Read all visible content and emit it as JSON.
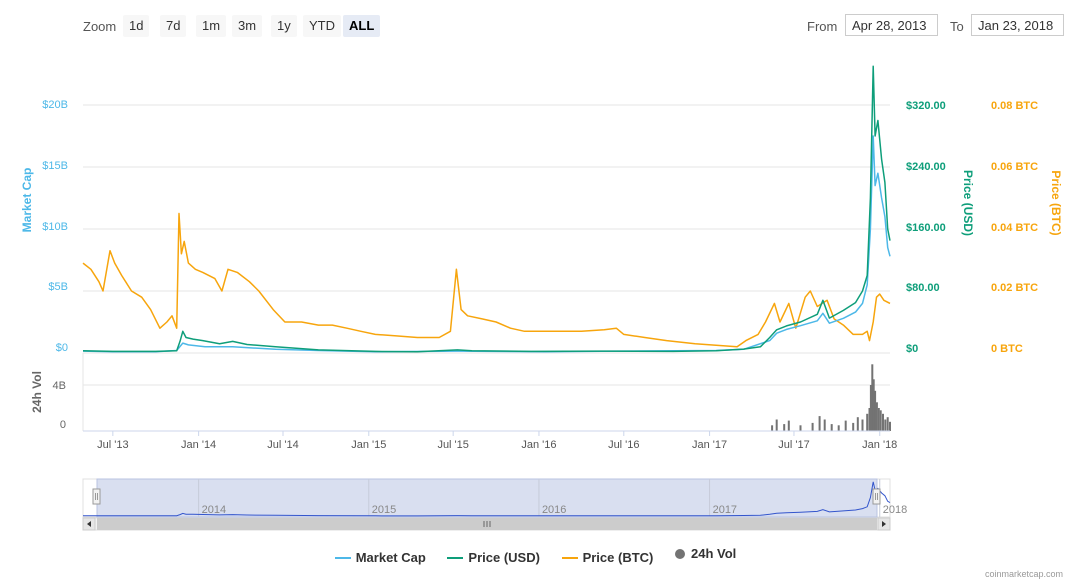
{
  "toolbar": {
    "zoom_label": "Zoom",
    "zoom_buttons": [
      "1d",
      "7d",
      "1m",
      "3m",
      "1y",
      "YTD",
      "ALL"
    ],
    "active_zoom": "ALL",
    "from_label": "From",
    "from_value": "Apr 28, 2013",
    "to_label": "To",
    "to_value": "Jan 23, 2018"
  },
  "legend": [
    {
      "name": "Market Cap",
      "color": "#4db8e8",
      "shape": "line"
    },
    {
      "name": "Price (USD)",
      "color": "#0e9e7a",
      "shape": "line"
    },
    {
      "name": "Price (BTC)",
      "color": "#f7a50d",
      "shape": "line"
    },
    {
      "name": "24h Vol",
      "color": "#737373",
      "shape": "dot"
    }
  ],
  "credit": "coinmarketcap.com",
  "chart_data": {
    "type": "line",
    "x_range": [
      "2013-04-28",
      "2018-01-23"
    ],
    "x_ticks": [
      "Jul '13",
      "Jan '14",
      "Jul '14",
      "Jan '15",
      "Jul '15",
      "Jan '16",
      "Jul '16",
      "Jan '17",
      "Jul '17",
      "Jan '18"
    ],
    "navigator_ticks": [
      "2014",
      "2015",
      "2016",
      "2017",
      "2018"
    ],
    "axes": {
      "market_cap": {
        "label": "Market Cap",
        "ticks": [
          "$0",
          "$5B",
          "$10B",
          "$15B",
          "$20B"
        ],
        "color": "#4db8e8",
        "range": [
          0,
          20000000000
        ]
      },
      "price_usd": {
        "label": "Price (USD)",
        "ticks": [
          "$0",
          "$80.00",
          "$160.00",
          "$240.00",
          "$320.00"
        ],
        "color": "#0e9e7a",
        "range": [
          0,
          320
        ]
      },
      "price_btc": {
        "label": "Price (BTC)",
        "ticks": [
          "0 BTC",
          "0.02 BTC",
          "0.04 BTC",
          "0.06 BTC",
          "0.08 BTC"
        ],
        "color": "#f7a50d",
        "range": [
          0,
          0.08
        ]
      },
      "volume": {
        "label": "24h Vol",
        "ticks": [
          "0",
          "4B"
        ],
        "color": "#737373",
        "range": [
          0,
          4000000000
        ]
      }
    },
    "series": [
      {
        "name": "Price (BTC)",
        "axis": "price_btc",
        "points": [
          [
            "2013-04-28",
            0.029
          ],
          [
            "2013-05-15",
            0.027
          ],
          [
            "2013-06-01",
            0.023
          ],
          [
            "2013-06-10",
            0.02
          ],
          [
            "2013-06-25",
            0.033
          ],
          [
            "2013-07-05",
            0.029
          ],
          [
            "2013-07-20",
            0.025
          ],
          [
            "2013-08-10",
            0.02
          ],
          [
            "2013-09-01",
            0.018
          ],
          [
            "2013-09-20",
            0.014
          ],
          [
            "2013-10-10",
            0.008
          ],
          [
            "2013-10-25",
            0.01
          ],
          [
            "2013-11-05",
            0.012
          ],
          [
            "2013-11-15",
            0.008
          ],
          [
            "2013-11-20",
            0.045
          ],
          [
            "2013-11-25",
            0.032
          ],
          [
            "2013-12-01",
            0.036
          ],
          [
            "2013-12-10",
            0.029
          ],
          [
            "2013-12-25",
            0.027
          ],
          [
            "2014-01-10",
            0.026
          ],
          [
            "2014-02-05",
            0.024
          ],
          [
            "2014-02-20",
            0.02
          ],
          [
            "2014-03-05",
            0.027
          ],
          [
            "2014-03-25",
            0.026
          ],
          [
            "2014-04-20",
            0.023
          ],
          [
            "2014-05-10",
            0.02
          ],
          [
            "2014-06-10",
            0.014
          ],
          [
            "2014-07-05",
            0.01
          ],
          [
            "2014-08-10",
            0.01
          ],
          [
            "2014-09-15",
            0.009
          ],
          [
            "2014-10-15",
            0.009
          ],
          [
            "2014-11-15",
            0.008
          ],
          [
            "2014-12-15",
            0.007
          ],
          [
            "2015-01-15",
            0.006
          ],
          [
            "2015-03-01",
            0.0055
          ],
          [
            "2015-04-15",
            0.005
          ],
          [
            "2015-06-01",
            0.005
          ],
          [
            "2015-06-25",
            0.007
          ],
          [
            "2015-07-08",
            0.027
          ],
          [
            "2015-07-18",
            0.014
          ],
          [
            "2015-08-01",
            0.012
          ],
          [
            "2015-09-01",
            0.011
          ],
          [
            "2015-10-01",
            0.01
          ],
          [
            "2015-11-01",
            0.008
          ],
          [
            "2015-12-01",
            0.007
          ],
          [
            "2016-02-01",
            0.007
          ],
          [
            "2016-04-01",
            0.007
          ],
          [
            "2016-05-20",
            0.0075
          ],
          [
            "2016-06-15",
            0.008
          ],
          [
            "2016-07-01",
            0.006
          ],
          [
            "2016-08-15",
            0.005
          ],
          [
            "2016-10-01",
            0.004
          ],
          [
            "2016-12-01",
            0.003
          ],
          [
            "2017-01-15",
            0.0025
          ],
          [
            "2017-03-01",
            0.002
          ],
          [
            "2017-03-20",
            0.004
          ],
          [
            "2017-04-15",
            0.006
          ],
          [
            "2017-05-01",
            0.01
          ],
          [
            "2017-05-20",
            0.016
          ],
          [
            "2017-06-01",
            0.01
          ],
          [
            "2017-06-20",
            0.016
          ],
          [
            "2017-07-05",
            0.008
          ],
          [
            "2017-07-25",
            0.018
          ],
          [
            "2017-08-05",
            0.02
          ],
          [
            "2017-08-20",
            0.015
          ],
          [
            "2017-09-10",
            0.017
          ],
          [
            "2017-09-25",
            0.011
          ],
          [
            "2017-10-15",
            0.009
          ],
          [
            "2017-11-05",
            0.006
          ],
          [
            "2017-11-25",
            0.006
          ],
          [
            "2017-12-05",
            0.007
          ],
          [
            "2017-12-10",
            0.004
          ],
          [
            "2017-12-18",
            0.01
          ],
          [
            "2017-12-25",
            0.018
          ],
          [
            "2018-01-01",
            0.019
          ],
          [
            "2018-01-10",
            0.017
          ],
          [
            "2018-01-23",
            0.016
          ]
        ]
      },
      {
        "name": "Price (USD)",
        "axis": "price_usd",
        "points": [
          [
            "2013-04-28",
            3
          ],
          [
            "2013-07-01",
            2
          ],
          [
            "2013-10-01",
            2
          ],
          [
            "2013-11-15",
            3
          ],
          [
            "2013-11-22",
            15
          ],
          [
            "2013-11-28",
            28
          ],
          [
            "2013-12-05",
            20
          ],
          [
            "2013-12-20",
            18
          ],
          [
            "2014-01-10",
            16
          ],
          [
            "2014-02-15",
            12
          ],
          [
            "2014-03-15",
            15
          ],
          [
            "2014-04-15",
            11
          ],
          [
            "2014-06-15",
            8
          ],
          [
            "2014-09-15",
            4
          ],
          [
            "2015-01-15",
            2
          ],
          [
            "2015-04-15",
            1.5
          ],
          [
            "2015-07-10",
            4
          ],
          [
            "2015-08-10",
            3
          ],
          [
            "2015-12-15",
            2
          ],
          [
            "2016-05-15",
            2.5
          ],
          [
            "2016-10-15",
            2
          ],
          [
            "2017-01-15",
            3
          ],
          [
            "2017-03-15",
            5
          ],
          [
            "2017-04-20",
            8
          ],
          [
            "2017-05-10",
            20
          ],
          [
            "2017-05-25",
            30
          ],
          [
            "2017-06-15",
            35
          ],
          [
            "2017-07-15",
            40
          ],
          [
            "2017-08-20",
            50
          ],
          [
            "2017-09-01",
            68
          ],
          [
            "2017-09-15",
            45
          ],
          [
            "2017-10-15",
            55
          ],
          [
            "2017-11-10",
            65
          ],
          [
            "2017-11-25",
            80
          ],
          [
            "2017-12-05",
            100
          ],
          [
            "2017-12-12",
            200
          ],
          [
            "2017-12-18",
            370
          ],
          [
            "2017-12-22",
            280
          ],
          [
            "2017-12-28",
            300
          ],
          [
            "2018-01-05",
            250
          ],
          [
            "2018-01-12",
            220
          ],
          [
            "2018-01-18",
            160
          ],
          [
            "2018-01-23",
            145
          ]
        ]
      },
      {
        "name": "Market Cap",
        "axis": "market_cap",
        "points": [
          [
            "2013-04-28",
            150000000
          ],
          [
            "2013-07-01",
            100000000
          ],
          [
            "2013-10-01",
            100000000
          ],
          [
            "2013-11-15",
            200000000
          ],
          [
            "2013-11-28",
            800000000
          ],
          [
            "2013-12-10",
            650000000
          ],
          [
            "2014-01-15",
            500000000
          ],
          [
            "2014-03-15",
            500000000
          ],
          [
            "2014-06-15",
            300000000
          ],
          [
            "2014-09-15",
            200000000
          ],
          [
            "2015-01-15",
            100000000
          ],
          [
            "2015-07-10",
            150000000
          ],
          [
            "2016-01-15",
            100000000
          ],
          [
            "2016-06-15",
            150000000
          ],
          [
            "2017-01-15",
            200000000
          ],
          [
            "2017-03-15",
            300000000
          ],
          [
            "2017-05-10",
            1000000000
          ],
          [
            "2017-05-25",
            1600000000
          ],
          [
            "2017-06-15",
            1900000000
          ],
          [
            "2017-07-15",
            2200000000
          ],
          [
            "2017-08-20",
            2600000000
          ],
          [
            "2017-09-01",
            3200000000
          ],
          [
            "2017-09-15",
            2400000000
          ],
          [
            "2017-10-15",
            2800000000
          ],
          [
            "2017-11-10",
            3300000000
          ],
          [
            "2017-11-25",
            4000000000
          ],
          [
            "2017-12-05",
            5500000000
          ],
          [
            "2017-12-12",
            10000000000
          ],
          [
            "2017-12-18",
            17500000000
          ],
          [
            "2017-12-22",
            13500000000
          ],
          [
            "2017-12-28",
            14500000000
          ],
          [
            "2018-01-05",
            12500000000
          ],
          [
            "2018-01-12",
            11000000000
          ],
          [
            "2018-01-18",
            8500000000
          ],
          [
            "2018-01-23",
            7800000000
          ]
        ]
      },
      {
        "name": "24h Vol",
        "axis": "volume",
        "points": [
          [
            "2017-05-15",
            500000000
          ],
          [
            "2017-05-25",
            1000000000
          ],
          [
            "2017-06-10",
            600000000
          ],
          [
            "2017-06-20",
            900000000
          ],
          [
            "2017-07-15",
            500000000
          ],
          [
            "2017-08-10",
            700000000
          ],
          [
            "2017-08-25",
            1300000000
          ],
          [
            "2017-09-05",
            1000000000
          ],
          [
            "2017-09-20",
            600000000
          ],
          [
            "2017-10-05",
            500000000
          ],
          [
            "2017-10-20",
            900000000
          ],
          [
            "2017-11-05",
            700000000
          ],
          [
            "2017-11-15",
            1200000000
          ],
          [
            "2017-11-25",
            1000000000
          ],
          [
            "2017-12-05",
            1500000000
          ],
          [
            "2017-12-10",
            2000000000
          ],
          [
            "2017-12-13",
            4000000000
          ],
          [
            "2017-12-16",
            5800000000
          ],
          [
            "2017-12-19",
            4500000000
          ],
          [
            "2017-12-22",
            3500000000
          ],
          [
            "2017-12-26",
            2500000000
          ],
          [
            "2017-12-30",
            2000000000
          ],
          [
            "2018-01-03",
            1800000000
          ],
          [
            "2018-01-08",
            1500000000
          ],
          [
            "2018-01-13",
            1000000000
          ],
          [
            "2018-01-18",
            1200000000
          ],
          [
            "2018-01-23",
            800000000
          ]
        ]
      }
    ]
  }
}
